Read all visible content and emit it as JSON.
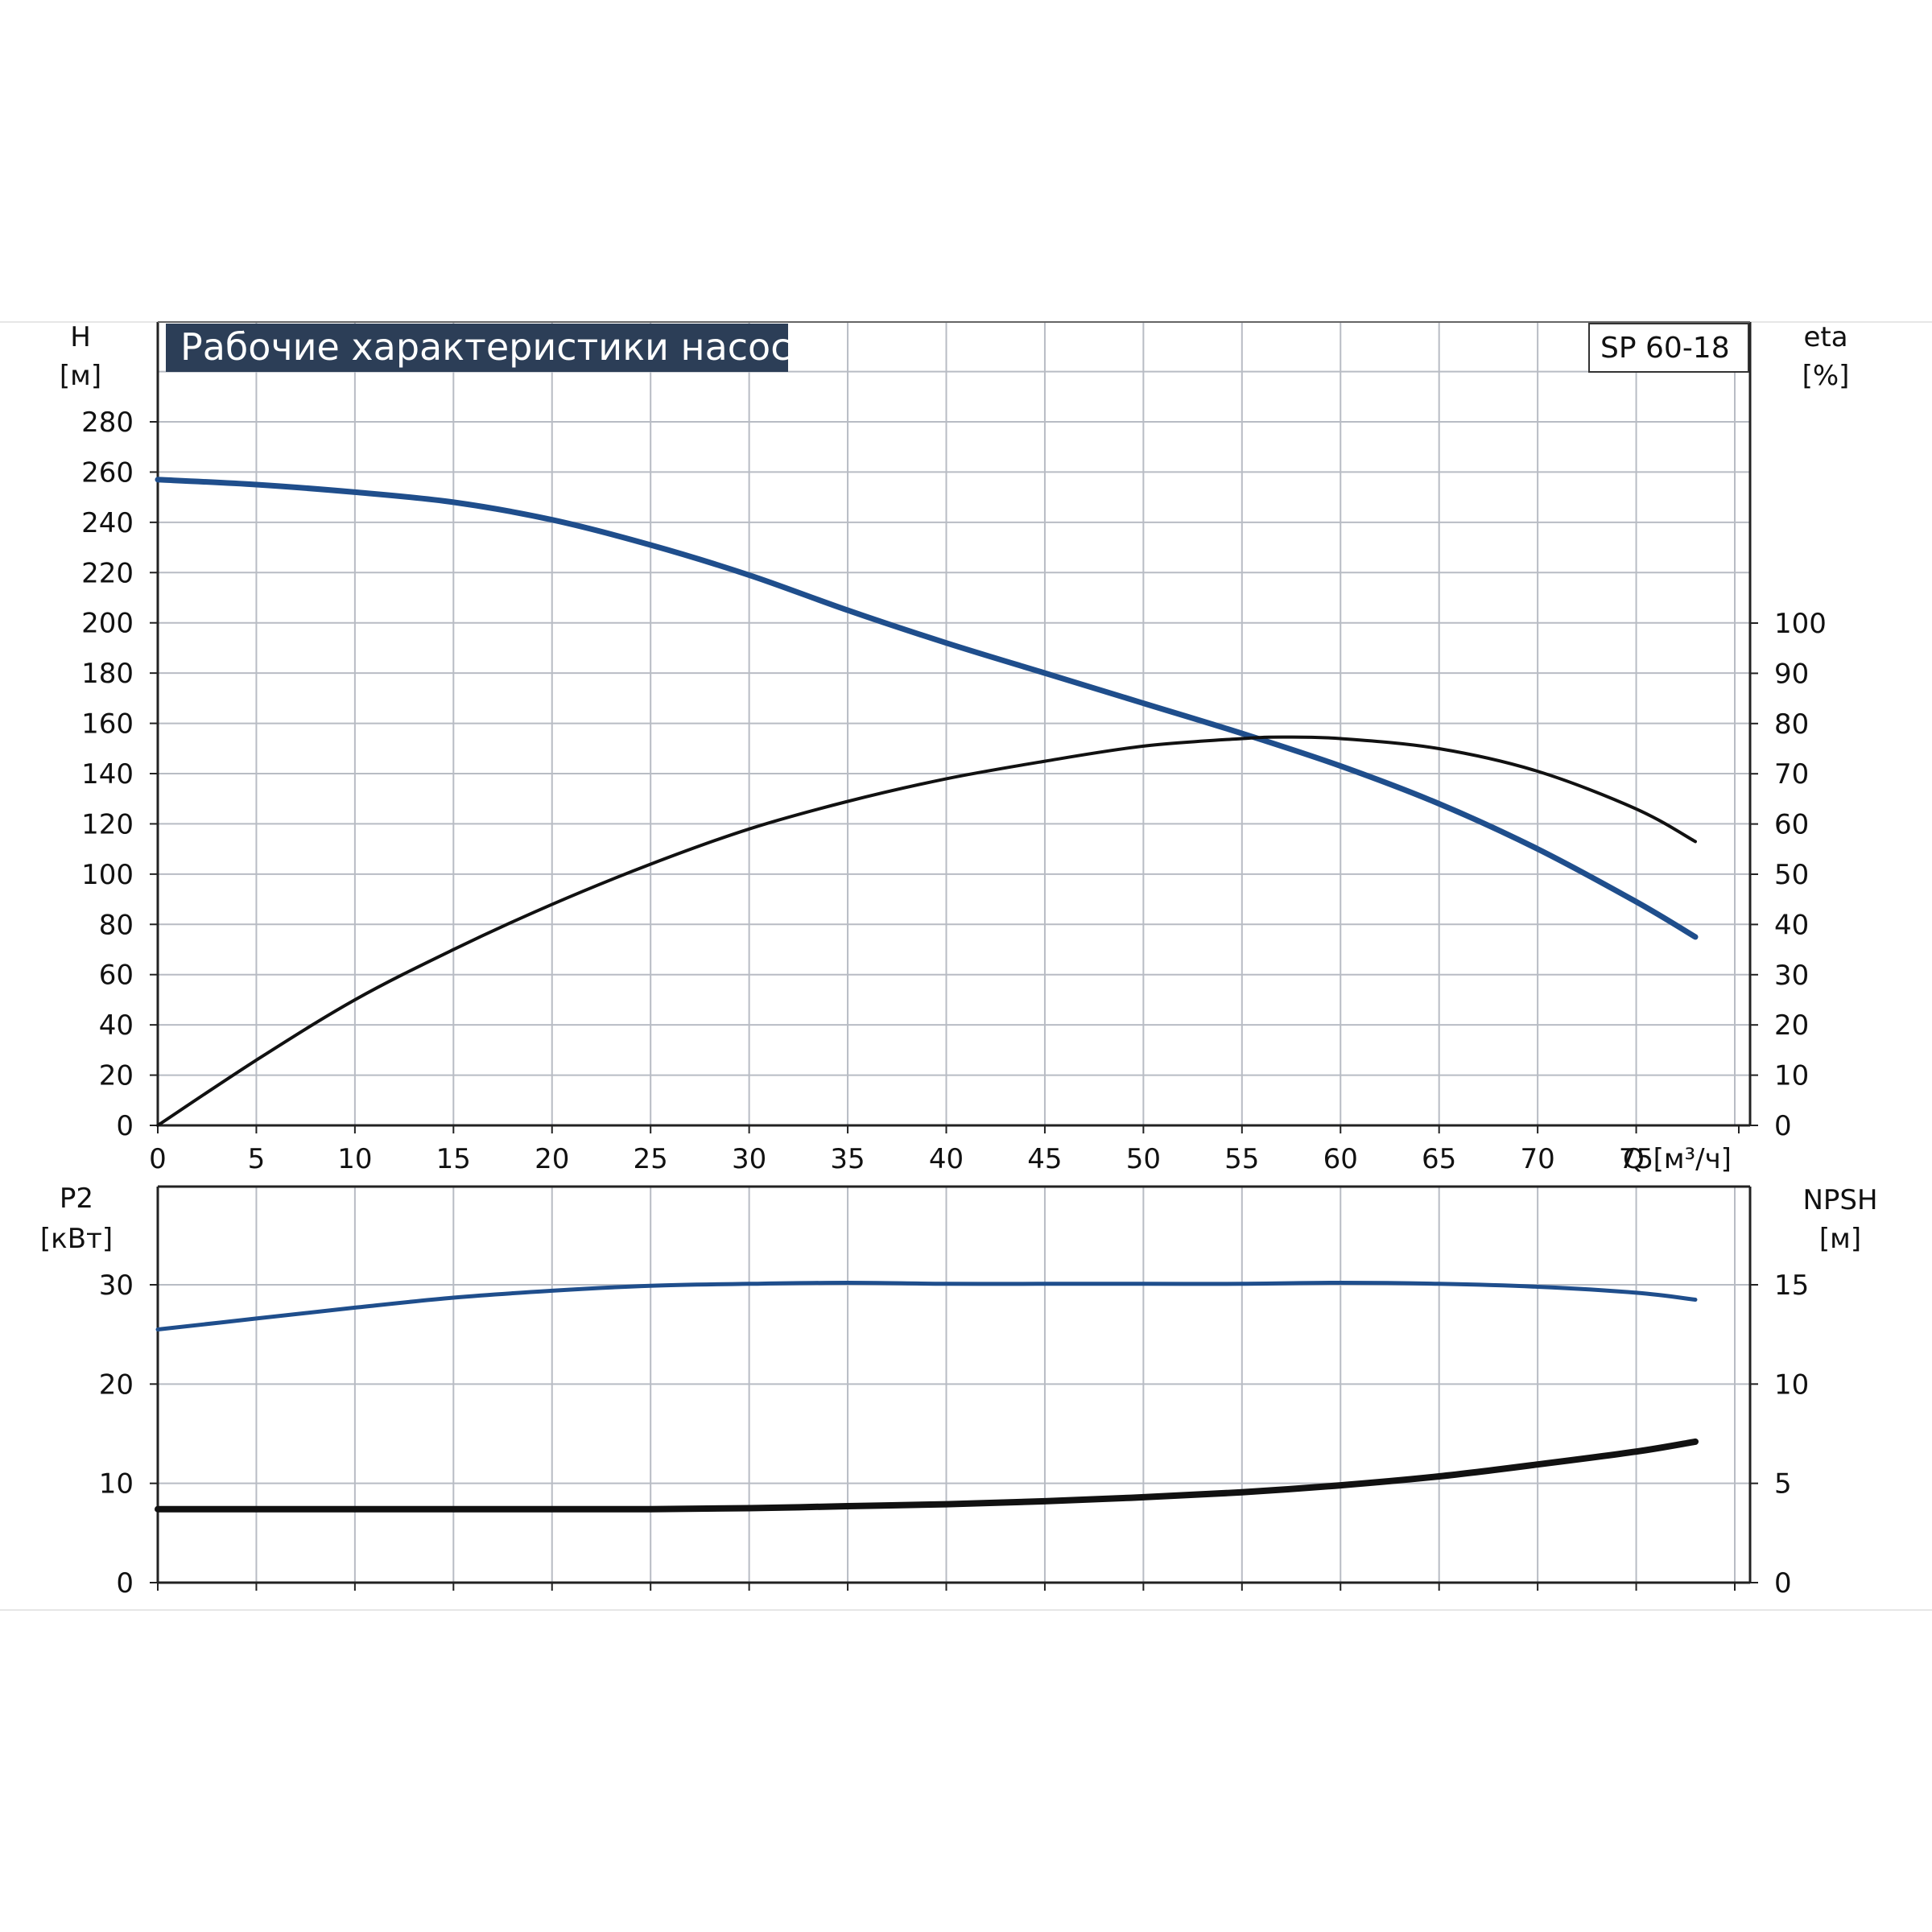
{
  "header": {
    "title": "Рабочие характеристики насоса",
    "model": "SP 60-18"
  },
  "colors": {
    "title_bg": "#2c3e57",
    "grid": "#b8bcc4",
    "blue": "#1f4e8c",
    "black": "#111111"
  },
  "chart_data": [
    {
      "type": "line",
      "title": "Рабочие характеристики насоса",
      "xlabel": "Q [м³/ч]",
      "ylabel": "H [м]",
      "y2label": "eta [%]",
      "xlim": [
        0,
        85
      ],
      "ylim": [
        0,
        300
      ],
      "y2lim": [
        0,
        150
      ],
      "x_ticks": [
        "0",
        "5",
        "10",
        "15",
        "20",
        "25",
        "30",
        "35",
        "40",
        "45",
        "50",
        "55",
        "60",
        "65",
        "70",
        "75"
      ],
      "y_ticks": [
        "0",
        "20",
        "40",
        "60",
        "80",
        "100",
        "120",
        "140",
        "160",
        "180",
        "200",
        "220",
        "240",
        "260",
        "280"
      ],
      "y2_ticks": [
        "0",
        "10",
        "20",
        "30",
        "40",
        "50",
        "60",
        "70",
        "80",
        "90",
        "100"
      ],
      "grid": true,
      "series": [
        {
          "name": "H",
          "axis": "left",
          "color": "blue",
          "x": [
            0,
            5,
            10,
            15,
            20,
            25,
            30,
            35,
            40,
            45,
            50,
            55,
            60,
            65,
            70,
            75,
            78
          ],
          "values": [
            257,
            255,
            252,
            248,
            241,
            231,
            219,
            205,
            192,
            180,
            168,
            156,
            143,
            128,
            110,
            89,
            75
          ]
        },
        {
          "name": "eta",
          "axis": "right",
          "color": "black",
          "x": [
            0,
            5,
            10,
            15,
            20,
            25,
            30,
            35,
            40,
            45,
            50,
            55,
            57,
            60,
            65,
            70,
            75,
            78
          ],
          "values": [
            0,
            13,
            25,
            35,
            44,
            52,
            59,
            64.5,
            69,
            72.5,
            75.5,
            77,
            77.3,
            77,
            75,
            70.5,
            63,
            56.5
          ]
        }
      ]
    },
    {
      "type": "line",
      "xlabel": "",
      "ylabel": "P2 [кВт]",
      "y2label": "NPSH [м]",
      "xlim": [
        0,
        85
      ],
      "ylim": [
        0,
        40
      ],
      "y2lim": [
        0,
        20
      ],
      "y_ticks": [
        "0",
        "10",
        "20",
        "30"
      ],
      "y2_ticks": [
        "0",
        "5",
        "10",
        "15"
      ],
      "grid": true,
      "series": [
        {
          "name": "P2",
          "axis": "left",
          "color": "blue",
          "x": [
            0,
            5,
            10,
            15,
            20,
            25,
            30,
            35,
            40,
            45,
            50,
            55,
            60,
            65,
            70,
            75,
            78
          ],
          "values": [
            25.5,
            26.6,
            27.7,
            28.7,
            29.4,
            29.9,
            30.1,
            30.2,
            30.1,
            30.1,
            30.1,
            30.1,
            30.2,
            30.1,
            29.8,
            29.2,
            28.5
          ]
        },
        {
          "name": "NPSH",
          "axis": "right",
          "color": "black",
          "x": [
            0,
            5,
            10,
            15,
            20,
            25,
            30,
            35,
            40,
            45,
            50,
            55,
            60,
            65,
            70,
            75,
            78
          ],
          "values": [
            3.7,
            3.7,
            3.7,
            3.7,
            3.7,
            3.7,
            3.75,
            3.85,
            3.95,
            4.1,
            4.3,
            4.55,
            4.9,
            5.35,
            5.95,
            6.6,
            7.1
          ]
        }
      ]
    }
  ],
  "labels": {
    "top_left_unit_1": "H",
    "top_left_unit_2": "[м]",
    "top_right_unit_1": "eta",
    "top_right_unit_2": "[%]",
    "x_unit": "Q [м³/ч]",
    "bottom_left_unit_1": "P2",
    "bottom_left_unit_2": "[кВт]",
    "bottom_right_unit_1": "NPSH",
    "bottom_right_unit_2": "[м]"
  }
}
